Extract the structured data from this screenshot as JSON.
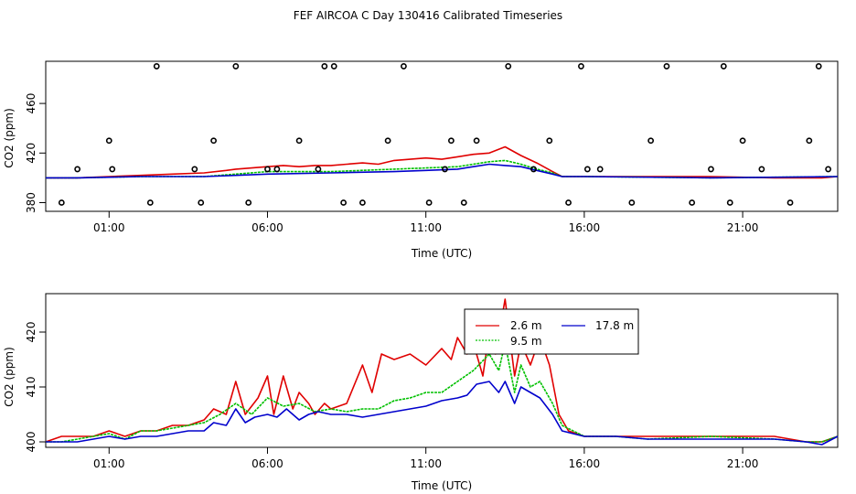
{
  "chart_data": [
    {
      "type": "line",
      "title": "FEF AIRCOA C  Day 130416  Calibrated Timeseries",
      "xlabel": "Time (UTC)",
      "ylabel": "CO2 (ppm)",
      "xlim": [
        -1,
        24
      ],
      "ylim": [
        373,
        494
      ],
      "x_ticks": [
        1,
        6,
        11,
        16,
        21
      ],
      "x_tick_labels": [
        "01:00",
        "06:00",
        "11:00",
        "16:00",
        "21:00"
      ],
      "y_ticks": [
        380,
        420,
        460
      ],
      "y_tick_labels": [
        "380",
        "420",
        "460"
      ],
      "series": [
        {
          "name": "2.6 m",
          "color": "#e00000",
          "x": [
            -1,
            0,
            1,
            2,
            3,
            4,
            4.7,
            5,
            5.5,
            6,
            6.5,
            7,
            7.5,
            8,
            8.5,
            9,
            9.5,
            10,
            10.5,
            11,
            11.5,
            12,
            12.5,
            13,
            13.5,
            14,
            14.5,
            15,
            15.3,
            16,
            18,
            20,
            22,
            23.5,
            24
          ],
          "y": [
            400,
            400,
            401,
            402,
            403,
            404,
            406,
            407,
            408,
            409,
            410,
            409,
            410,
            410,
            411,
            412,
            411,
            414,
            415,
            416,
            415,
            417,
            419,
            420,
            425,
            418,
            412,
            405,
            401,
            401,
            401,
            401,
            400,
            400,
            401
          ]
        },
        {
          "name": "9.5 m",
          "color": "#00c000",
          "x": [
            -1,
            0,
            2,
            4,
            5,
            6,
            8,
            10,
            11,
            12,
            12.5,
            13,
            13.5,
            14,
            14.5,
            15,
            15.3,
            16,
            20,
            24
          ],
          "y": [
            400,
            400,
            401,
            401,
            403,
            405,
            405,
            407,
            408,
            409,
            411,
            413,
            414,
            411,
            407,
            404,
            401,
            401,
            400,
            401
          ]
        },
        {
          "name": "17.8 m",
          "color": "#0000cc",
          "x": [
            -1,
            0,
            2,
            4,
            5,
            6,
            8,
            10,
            11,
            12,
            12.5,
            13,
            13.5,
            14,
            14.5,
            15,
            15.3,
            16,
            20,
            24
          ],
          "y": [
            400,
            400,
            401,
            401,
            402,
            403,
            404,
            405,
            406,
            407,
            409,
            411,
            410,
            409,
            406,
            403,
            401,
            401,
            400,
            401
          ]
        }
      ],
      "points": {
        "x": [
          -0.5,
          0,
          1,
          1.1,
          2.3,
          2.5,
          3.7,
          3.9,
          4.3,
          5,
          5.4,
          6,
          6.3,
          7,
          7.6,
          7.8,
          8.1,
          8.4,
          9,
          9.8,
          10.3,
          11.1,
          11.6,
          11.8,
          12.2,
          12.6,
          13.6,
          14.4,
          14.9,
          15.5,
          15.9,
          16.1,
          16.5,
          17.5,
          18.1,
          18.6,
          19.4,
          20,
          20.4,
          20.6,
          21,
          21.6,
          22.5,
          23.1,
          23.4,
          23.7
        ],
        "y": [
          380,
          407,
          430,
          407,
          380,
          490,
          407,
          380,
          430,
          490,
          380,
          407,
          407,
          430,
          407,
          490,
          490,
          380,
          380,
          430,
          490,
          380,
          407,
          430,
          380,
          430,
          490,
          407,
          430,
          380,
          490,
          407,
          407,
          380,
          430,
          490,
          380,
          407,
          490,
          380,
          430,
          407,
          380,
          430,
          490,
          407
        ]
      }
    },
    {
      "type": "line",
      "title": "",
      "xlabel": "Time (UTC)",
      "ylabel": "CO2 (ppm)",
      "xlim": [
        -1,
        24
      ],
      "ylim": [
        399,
        427
      ],
      "x_ticks": [
        1,
        6,
        11,
        16,
        21
      ],
      "x_tick_labels": [
        "01:00",
        "06:00",
        "11:00",
        "16:00",
        "21:00"
      ],
      "y_ticks": [
        400,
        410,
        420
      ],
      "y_tick_labels": [
        "400",
        "410",
        "420"
      ],
      "legend": {
        "position": "top-center",
        "entries": [
          "2.6 m",
          "17.8 m",
          "9.5 m"
        ]
      },
      "series": [
        {
          "name": "2.6 m",
          "color": "#e00000",
          "x": [
            -1,
            -0.5,
            0,
            0.5,
            1,
            1.5,
            2,
            2.5,
            3,
            3.5,
            4,
            4.3,
            4.7,
            5,
            5.3,
            5.7,
            6,
            6.2,
            6.5,
            6.8,
            7,
            7.3,
            7.5,
            7.8,
            8,
            8.5,
            9,
            9.3,
            9.6,
            10,
            10.5,
            11,
            11.5,
            11.8,
            12,
            12.3,
            12.5,
            12.8,
            13,
            13.2,
            13.5,
            13.8,
            14,
            14.3,
            14.6,
            14.9,
            15.2,
            15.5,
            16,
            17,
            18,
            19,
            20,
            21,
            22,
            23,
            23.5,
            24
          ],
          "y": [
            400,
            401,
            401,
            401,
            402,
            401,
            402,
            402,
            403,
            403,
            404,
            406,
            405,
            411,
            405,
            408,
            412,
            405,
            412,
            406,
            409,
            407,
            405,
            407,
            406,
            407,
            414,
            409,
            416,
            415,
            416,
            414,
            417,
            415,
            419,
            416,
            418,
            412,
            420,
            416,
            426,
            412,
            418,
            414,
            419,
            414,
            405,
            402,
            401,
            401,
            401,
            401,
            401,
            401,
            401,
            400,
            400,
            401
          ]
        },
        {
          "name": "9.5 m",
          "color": "#00c000",
          "x": [
            -1,
            -0.5,
            0,
            0.5,
            1,
            1.5,
            2,
            2.5,
            3,
            3.5,
            4,
            4.5,
            5,
            5.5,
            6,
            6.5,
            7,
            7.5,
            8,
            8.5,
            9,
            9.5,
            10,
            10.5,
            11,
            11.5,
            12,
            12.5,
            13,
            13.3,
            13.5,
            13.8,
            14,
            14.3,
            14.6,
            15,
            15.3,
            16,
            17,
            18,
            20,
            22,
            23,
            23.5,
            24
          ],
          "y": [
            400,
            400,
            400.5,
            401,
            401.5,
            400.5,
            402,
            402,
            402.5,
            403,
            403.5,
            405,
            407,
            405,
            408,
            406.5,
            407,
            405.5,
            406,
            405.5,
            406,
            406,
            407.5,
            408,
            409,
            409,
            411,
            413,
            416,
            413,
            418,
            409,
            414,
            410,
            411,
            407,
            403,
            401,
            401,
            400.5,
            401,
            400.5,
            400,
            400,
            401
          ]
        },
        {
          "name": "17.8 m",
          "color": "#0000cc",
          "x": [
            -1,
            -0.5,
            0,
            0.5,
            1,
            1.5,
            2,
            2.5,
            3,
            3.5,
            4,
            4.3,
            4.7,
            5,
            5.3,
            5.6,
            6,
            6.3,
            6.6,
            7,
            7.3,
            7.6,
            8,
            8.5,
            9,
            9.5,
            10,
            10.5,
            11,
            11.5,
            12,
            12.3,
            12.6,
            13,
            13.3,
            13.5,
            13.8,
            14,
            14.3,
            14.6,
            15,
            15.3,
            16,
            17,
            18,
            19,
            20,
            21,
            22,
            23,
            23.5,
            24
          ],
          "y": [
            400,
            400,
            400,
            400.5,
            401,
            400.5,
            401,
            401,
            401.5,
            402,
            402,
            403.5,
            403,
            406,
            403.5,
            404.5,
            405,
            404.5,
            406,
            404,
            405,
            405.5,
            405,
            405,
            404.5,
            405,
            405.5,
            406,
            406.5,
            407.5,
            408,
            408.5,
            410.5,
            411,
            409,
            411,
            407,
            410,
            409,
            408,
            405,
            402,
            401,
            401,
            400.5,
            400.5,
            400.5,
            400.5,
            400.5,
            400,
            399.5,
            401
          ]
        }
      ]
    }
  ]
}
